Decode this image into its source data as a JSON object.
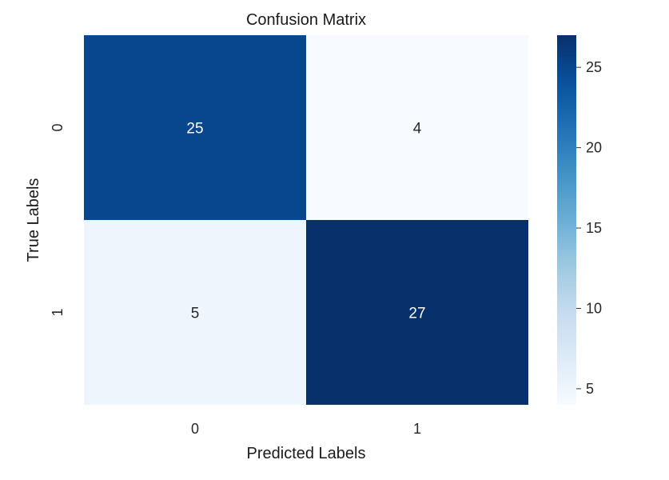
{
  "chart_data": {
    "type": "heatmap",
    "title": "Confusion Matrix",
    "xlabel": "Predicted Labels",
    "ylabel": "True Labels",
    "x_categories": [
      "0",
      "1"
    ],
    "y_categories": [
      "0",
      "1"
    ],
    "values": [
      [
        25,
        4
      ],
      [
        5,
        27
      ]
    ],
    "cell_text": [
      [
        "25",
        "4"
      ],
      [
        "5",
        "27"
      ]
    ],
    "colormap": "Blues",
    "colorbar": {
      "range": [
        4,
        27
      ],
      "ticks": [
        5,
        10,
        15,
        20,
        25
      ],
      "tick_labels": [
        "5",
        "10",
        "15",
        "20",
        "25"
      ]
    }
  }
}
